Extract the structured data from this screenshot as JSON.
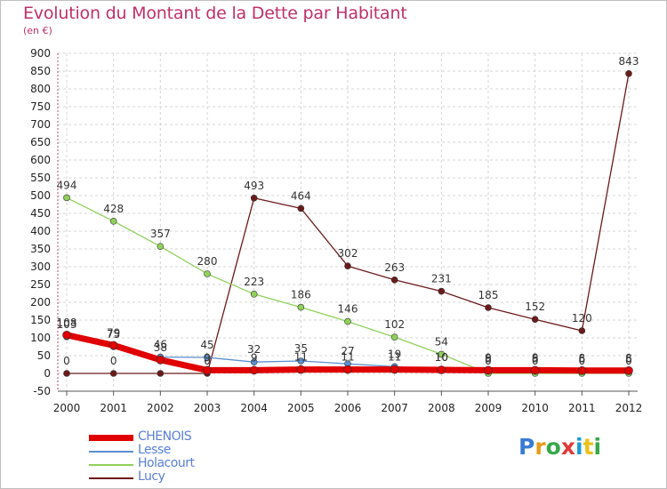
{
  "header": {
    "title": "Evolution du Montant de la Dette par Habitant",
    "unit": "(en €)"
  },
  "logo": {
    "text": "Proxiti",
    "colors": [
      "#3a7bd5",
      "#e89b1a",
      "#36a84a",
      "#e03a3a",
      "#1a9bd5",
      "#e8c31a",
      "#36a84a"
    ]
  },
  "chart_data": {
    "type": "line",
    "categories": [
      "2000",
      "2001",
      "2002",
      "2003",
      "2004",
      "2005",
      "2006",
      "2007",
      "2008",
      "2009",
      "2010",
      "2011",
      "2012"
    ],
    "ylim": [
      -50,
      900
    ],
    "yticks": [
      -50,
      0,
      50,
      100,
      150,
      200,
      250,
      300,
      350,
      400,
      450,
      500,
      550,
      600,
      650,
      700,
      750,
      800,
      850,
      900
    ],
    "grid": true,
    "legend_position": "bottom-left",
    "series": [
      {
        "name": "Lucy",
        "color": "#6b1a1a",
        "width": 1.3,
        "values": [
          0,
          0,
          0,
          0,
          493,
          464,
          302,
          263,
          231,
          185,
          152,
          120,
          843
        ],
        "labels": [
          "0",
          "0",
          "",
          "0",
          "493",
          "464",
          "302",
          "263",
          "231",
          "185",
          "152",
          "120",
          "843"
        ]
      },
      {
        "name": "Holacourt",
        "color": "#8fd15a",
        "width": 1.3,
        "values": [
          494,
          428,
          357,
          280,
          223,
          186,
          146,
          102,
          54,
          0,
          0,
          0,
          0
        ],
        "labels": [
          "494",
          "428",
          "357",
          "280",
          "223",
          "186",
          "146",
          "102",
          "54",
          "0",
          "0",
          "0",
          "0"
        ]
      },
      {
        "name": "Lesse",
        "color": "#5b8fd0",
        "width": 1.3,
        "values": [
          103,
          75,
          46,
          45,
          32,
          35,
          27,
          19,
          10,
          6,
          6,
          6,
          6
        ],
        "labels": [
          "103",
          "75",
          "46",
          "45",
          "32",
          "35",
          "27",
          "19",
          "10",
          "6",
          "6",
          "6",
          "6"
        ]
      },
      {
        "name": "CHENOIS",
        "color": "#e00000",
        "width": 7,
        "values": [
          108,
          79,
          38,
          9,
          9,
          11,
          11,
          11,
          10,
          9,
          9,
          8,
          8
        ],
        "labels": [
          "108",
          "79",
          "38",
          "9",
          "9",
          "11",
          "11",
          "11",
          "10",
          "9",
          "9",
          "8",
          "8"
        ]
      }
    ],
    "legend": [
      "CHENOIS",
      "Lesse",
      "Holacourt",
      "Lucy"
    ]
  }
}
